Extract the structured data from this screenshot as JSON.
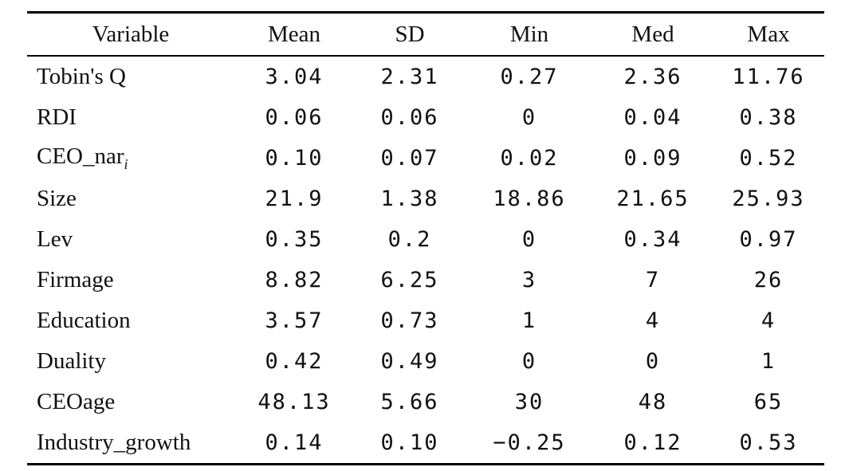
{
  "table": {
    "headers": [
      "Variable",
      "Mean",
      "SD",
      "Min",
      "Med",
      "Max"
    ],
    "rows": [
      [
        "Tobin's Q",
        "3.04",
        "2.31",
        "0.27",
        "2.36",
        "11.76"
      ],
      [
        "RDI",
        "0.06",
        "0.06",
        "0",
        "0.04",
        "0.38"
      ],
      [
        "CEO_nar",
        "0.10",
        "0.07",
        "0.02",
        "0.09",
        "0.52"
      ],
      [
        "Size",
        "21.9",
        "1.38",
        "18.86",
        "21.65",
        "25.93"
      ],
      [
        "Lev",
        "0.35",
        "0.2",
        "0",
        "0.34",
        "0.97"
      ],
      [
        "Firmage",
        "8.82",
        "6.25",
        "3",
        "7",
        "26"
      ],
      [
        "Education",
        "3.57",
        "0.73",
        "1",
        "4",
        "4"
      ],
      [
        "Duality",
        "0.42",
        "0.49",
        "0",
        "0",
        "1"
      ],
      [
        "CEOage",
        "48.13",
        "5.66",
        "30",
        "48",
        "65"
      ],
      [
        "Industry_growth",
        "0.14",
        "0.10",
        "−0.25",
        "0.12",
        "0.53"
      ]
    ],
    "ceo_nar_subscript": "i"
  }
}
